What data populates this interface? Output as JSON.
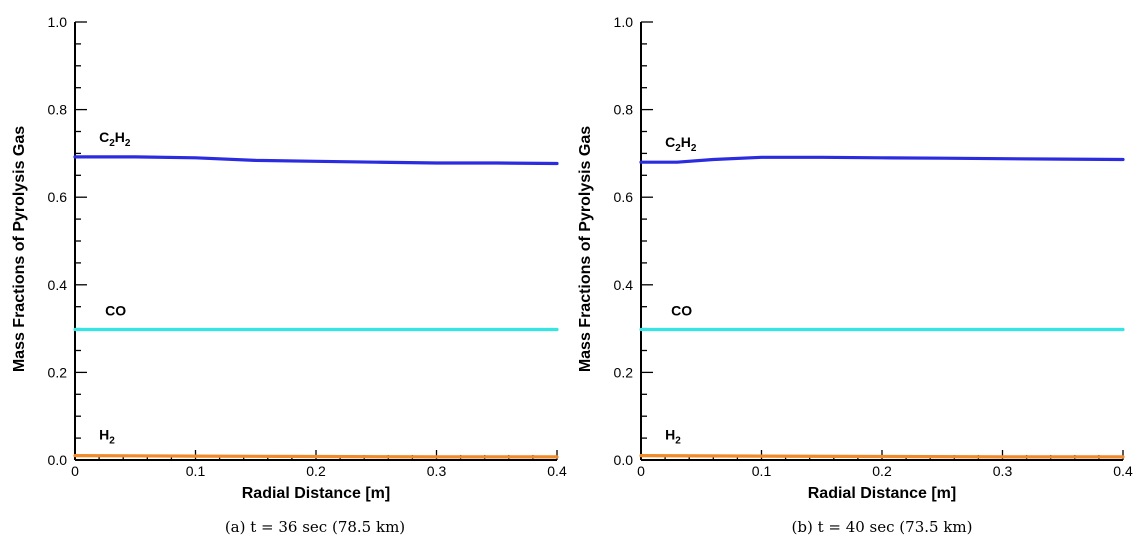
{
  "colors": {
    "c2h2": "#2b2be0",
    "co": "#33e5e5",
    "h2": "#f08a2a",
    "axis": "#000000"
  },
  "chart_data": [
    {
      "type": "line",
      "caption": "(a) t = 36 sec (78.5 km)",
      "xlabel": "Radial Distance [m]",
      "ylabel": "Mass Fractions of Pyrolysis Gas",
      "xlim": [
        0,
        0.4
      ],
      "ylim": [
        0,
        1.0
      ],
      "xticks": [
        "0",
        "0.1",
        "0.2",
        "0.3",
        "0.4"
      ],
      "yticks": [
        "0.0",
        "0.2",
        "0.4",
        "0.6",
        "0.8",
        "1.0"
      ],
      "grid": false,
      "series": [
        {
          "name": "C2H2",
          "label_main_1": "C",
          "label_sub_1": "2",
          "label_main_2": "H",
          "label_sub_2": "2",
          "color_key": "c2h2",
          "x": [
            0,
            0.05,
            0.1,
            0.15,
            0.2,
            0.25,
            0.3,
            0.35,
            0.4
          ],
          "y": [
            0.692,
            0.692,
            0.69,
            0.684,
            0.682,
            0.68,
            0.678,
            0.678,
            0.677
          ]
        },
        {
          "name": "CO",
          "label_main_1": "CO",
          "color_key": "co",
          "x": [
            0,
            0.1,
            0.2,
            0.3,
            0.4
          ],
          "y": [
            0.298,
            0.298,
            0.298,
            0.298,
            0.298
          ]
        },
        {
          "name": "H2",
          "label_main_1": "H",
          "label_sub_1": "2",
          "color_key": "h2",
          "x": [
            0,
            0.1,
            0.2,
            0.3,
            0.4
          ],
          "y": [
            0.01,
            0.009,
            0.008,
            0.007,
            0.007
          ]
        }
      ]
    },
    {
      "type": "line",
      "caption": "(b) t = 40 sec (73.5 km)",
      "xlabel": "Radial Distance [m]",
      "ylabel": "Mass Fractions of Pyrolysis Gas",
      "xlim": [
        0,
        0.4
      ],
      "ylim": [
        0,
        1.0
      ],
      "xticks": [
        "0",
        "0.1",
        "0.2",
        "0.3",
        "0.4"
      ],
      "yticks": [
        "0.0",
        "0.2",
        "0.4",
        "0.6",
        "0.8",
        "1.0"
      ],
      "grid": false,
      "series": [
        {
          "name": "C2H2",
          "label_main_1": "C",
          "label_sub_1": "2",
          "label_main_2": "H",
          "label_sub_2": "2",
          "color_key": "c2h2",
          "x": [
            0,
            0.03,
            0.06,
            0.1,
            0.15,
            0.2,
            0.25,
            0.3,
            0.35,
            0.4
          ],
          "y": [
            0.68,
            0.68,
            0.686,
            0.691,
            0.691,
            0.69,
            0.689,
            0.688,
            0.687,
            0.686
          ]
        },
        {
          "name": "CO",
          "label_main_1": "CO",
          "color_key": "co",
          "x": [
            0,
            0.1,
            0.2,
            0.3,
            0.4
          ],
          "y": [
            0.298,
            0.298,
            0.298,
            0.298,
            0.298
          ]
        },
        {
          "name": "H2",
          "label_main_1": "H",
          "label_sub_1": "2",
          "color_key": "h2",
          "x": [
            0,
            0.1,
            0.2,
            0.3,
            0.4
          ],
          "y": [
            0.01,
            0.009,
            0.008,
            0.007,
            0.007
          ]
        }
      ]
    }
  ]
}
